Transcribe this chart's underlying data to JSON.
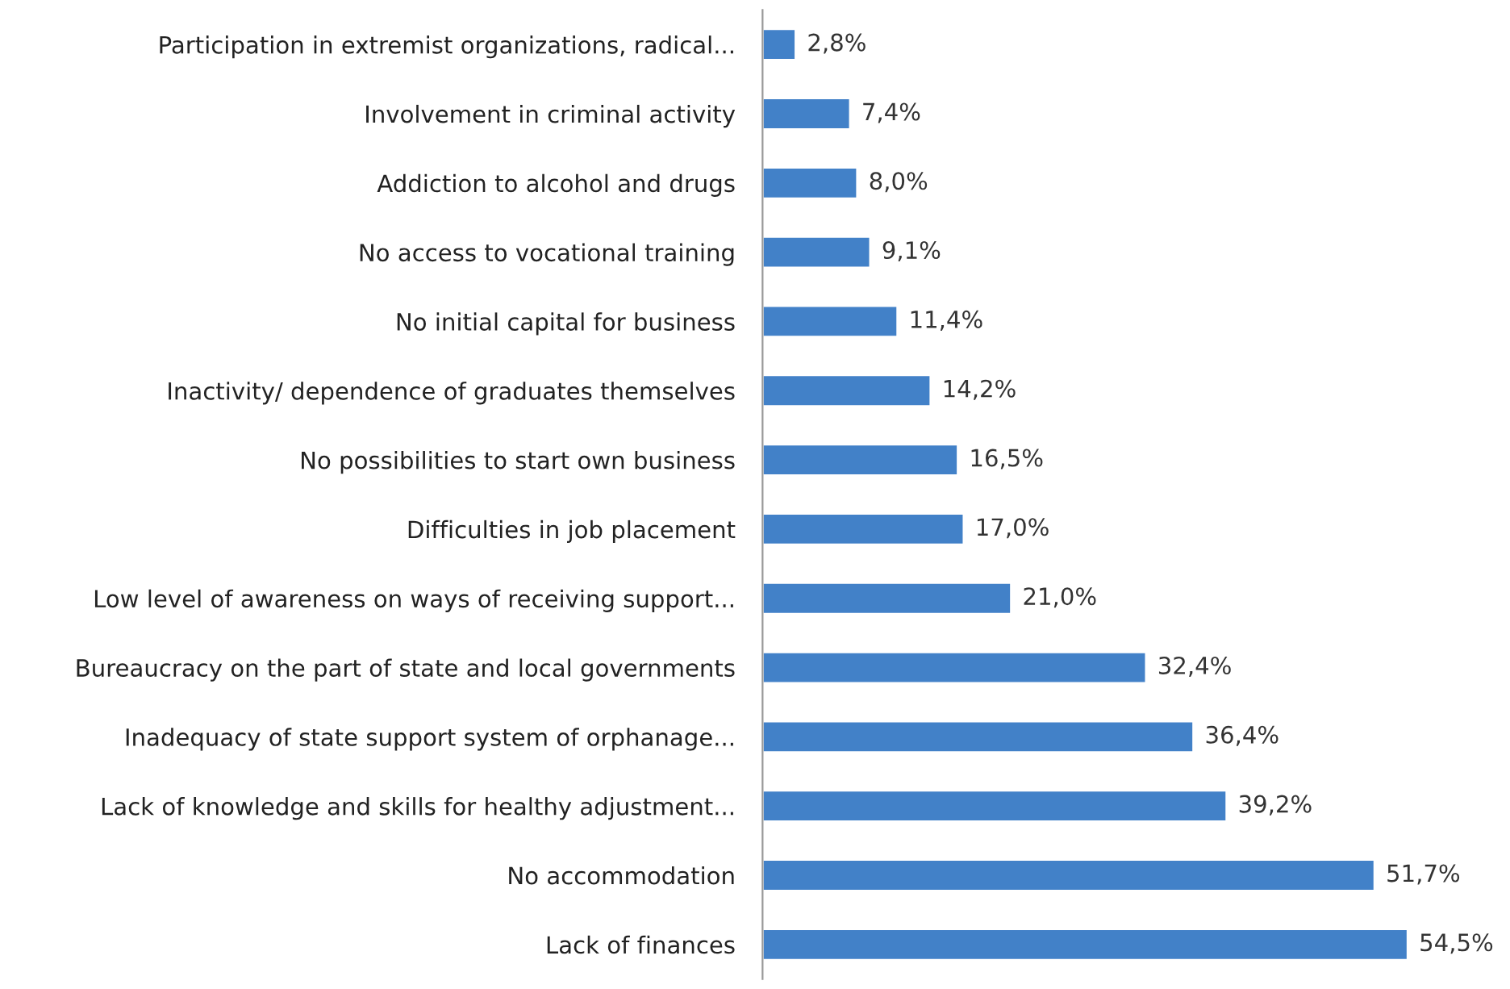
{
  "chart_data": {
    "type": "bar",
    "orientation": "horizontal",
    "color": "#4281c8",
    "categories": [
      "Participation in extremist organizations, radical...",
      "Involvement in criminal activity",
      "Addiction to alcohol and drugs",
      "No access to vocational training",
      "No initial capital for business",
      "Inactivity/ dependence of graduates themselves",
      "No possibilities to start own business",
      "Difficulties in job placement",
      "Low level of awareness on ways of receiving support...",
      "Bureaucracy on the part of state and local governments",
      "Inadequacy of state support system of orphanage...",
      "Lack of knowledge and skills for healthy adjustment...",
      "No accommodation",
      "Lack of finances"
    ],
    "values": [
      2.8,
      7.4,
      8.0,
      9.1,
      11.4,
      14.2,
      16.5,
      17.0,
      21.0,
      32.4,
      36.4,
      39.2,
      51.7,
      54.5
    ],
    "value_labels": [
      "2,8%",
      "7,4%",
      "8,0%",
      "9,1%",
      "11,4%",
      "14,2%",
      "16,5%",
      "17,0%",
      "21,0%",
      "32,4%",
      "36,4%",
      "39,2%",
      "51,7%",
      "54,5%"
    ],
    "grid": false,
    "legend": false
  }
}
